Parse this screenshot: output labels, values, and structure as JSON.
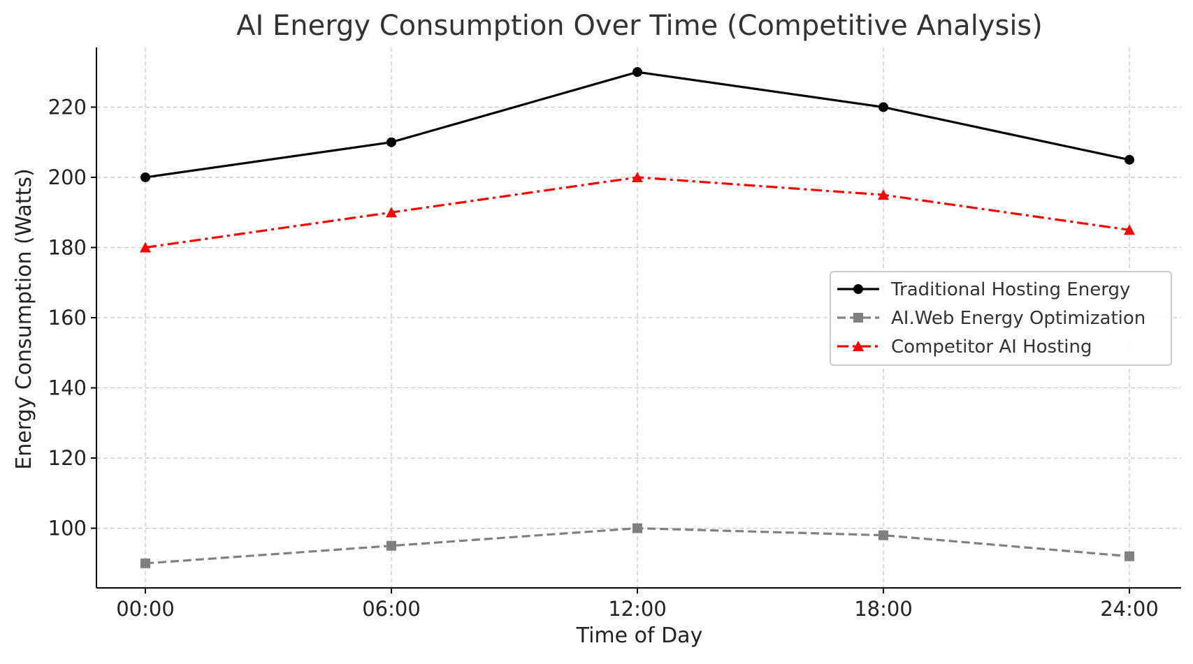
{
  "chart_data": {
    "type": "line",
    "title": "AI Energy Consumption Over Time (Competitive Analysis)",
    "xlabel": "Time of Day",
    "ylabel": "Energy Consumption (Watts)",
    "categories": [
      "00:00",
      "06:00",
      "12:00",
      "18:00",
      "24:00"
    ],
    "yticks": [
      100,
      120,
      140,
      160,
      180,
      200,
      220
    ],
    "ylim": [
      83,
      237
    ],
    "grid": true,
    "legend_position": "center-right",
    "series": [
      {
        "name": "Traditional Hosting Energy",
        "values": [
          200,
          210,
          230,
          220,
          205
        ],
        "color": "#000000",
        "line_style": "solid",
        "marker": "circle"
      },
      {
        "name": "AI.Web Energy Optimization",
        "values": [
          90,
          95,
          100,
          98,
          92
        ],
        "color": "#808080",
        "line_style": "dashed",
        "marker": "square"
      },
      {
        "name": "Competitor AI Hosting",
        "values": [
          180,
          190,
          200,
          195,
          185
        ],
        "color": "#ff0000",
        "line_style": "dashdot",
        "marker": "triangle"
      }
    ]
  }
}
